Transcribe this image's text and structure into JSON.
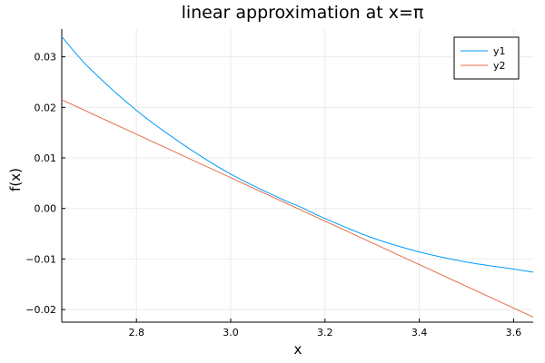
{
  "chart_data": {
    "type": "line",
    "title": "linear approximation at x=π",
    "xlabel": "x",
    "ylabel": "f(x)",
    "xlim": [
      2.6416,
      3.6416
    ],
    "ylim": [
      -0.0225,
      0.0355
    ],
    "xticks": [
      2.8,
      3.0,
      3.2,
      3.4,
      3.6
    ],
    "xtick_labels": [
      "2.8",
      "3.0",
      "3.2",
      "3.4",
      "3.6"
    ],
    "yticks": [
      -0.02,
      -0.01,
      0.0,
      0.01,
      0.02,
      0.03
    ],
    "ytick_labels": [
      "−0.02",
      "−0.01",
      "0.00",
      "0.01",
      "0.02",
      "0.03"
    ],
    "grid": true,
    "legend_position": "top-right",
    "series": [
      {
        "name": "y1",
        "color": "#009AFA",
        "x": [
          2.6416,
          2.7,
          2.8,
          2.9,
          3.0,
          3.1,
          3.15,
          3.2,
          3.3,
          3.4,
          3.5,
          3.6,
          3.6416
        ],
        "y": [
          0.034,
          0.0278,
          0.0194,
          0.0126,
          0.0068,
          0.0022,
          0.0002,
          -0.002,
          -0.0058,
          -0.0086,
          -0.0106,
          -0.012,
          -0.0126
        ]
      },
      {
        "name": "y2",
        "color": "#E36F47",
        "x": [
          2.6416,
          3.6416
        ],
        "y": [
          0.0215,
          -0.0215
        ]
      }
    ]
  }
}
